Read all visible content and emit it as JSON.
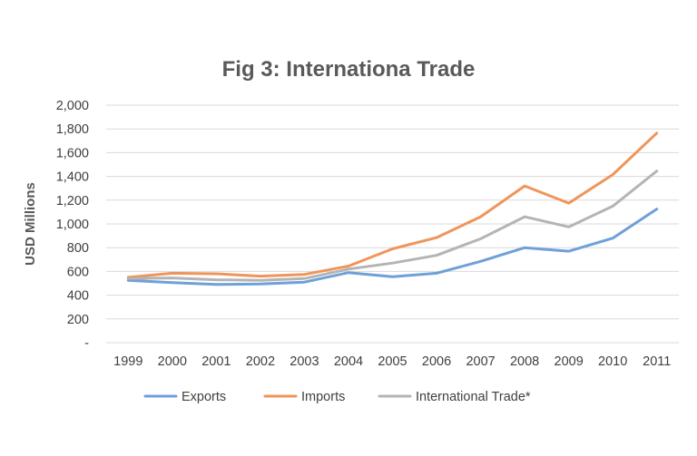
{
  "chart_data": {
    "type": "line",
    "title": "Fig 3: Internationa Trade",
    "xlabel": "",
    "ylabel": "USD Millions",
    "categories": [
      "1999",
      "2000",
      "2001",
      "2002",
      "2003",
      "2004",
      "2005",
      "2006",
      "2007",
      "2008",
      "2009",
      "2010",
      "2011"
    ],
    "ylim": [
      0,
      2000
    ],
    "yticks": [
      0,
      200,
      400,
      600,
      800,
      1000,
      1200,
      1400,
      1600,
      1800,
      2000
    ],
    "ytick_labels": [
      "-",
      "200",
      "400",
      "600",
      "800",
      "1,000",
      "1,200",
      "1,400",
      "1,600",
      "1,800",
      "2,000"
    ],
    "grid": true,
    "legend_position": "bottom",
    "series": [
      {
        "name": "Exports",
        "color": "#6fa0d8",
        "values": [
          525,
          505,
          490,
          495,
          510,
          590,
          555,
          585,
          685,
          800,
          770,
          880,
          1125
        ]
      },
      {
        "name": "Imports",
        "color": "#f0955a",
        "values": [
          550,
          585,
          580,
          560,
          575,
          645,
          790,
          885,
          1060,
          1320,
          1175,
          1415,
          1765
        ]
      },
      {
        "name": "International Trade*",
        "color": "#b4b4b4",
        "values": [
          540,
          545,
          530,
          525,
          540,
          620,
          670,
          735,
          875,
          1060,
          975,
          1150,
          1445
        ]
      }
    ]
  }
}
